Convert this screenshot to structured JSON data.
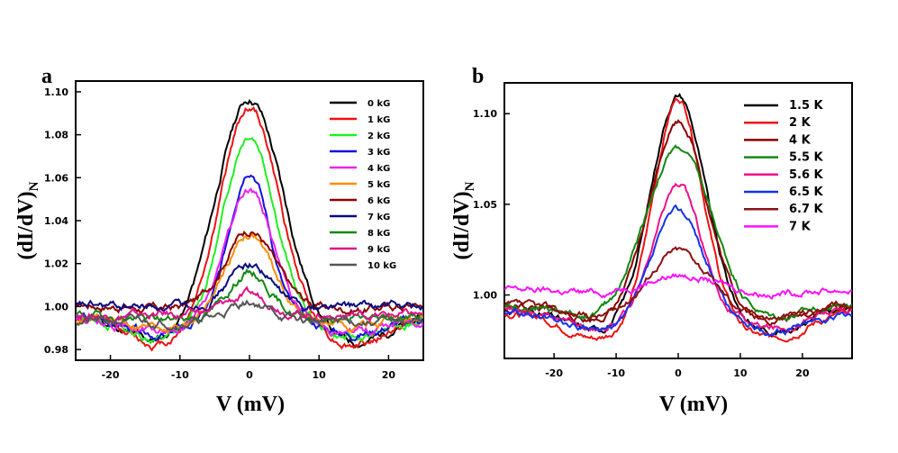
{
  "chart_data": [
    {
      "panel": "a",
      "type": "line",
      "xlabel": "V (mV)",
      "ylabel": "(dI/dV)N",
      "ylabel_main": "(dI/dV)",
      "ylabel_sub": "N",
      "xlim": [
        -25,
        25
      ],
      "ylim": [
        0.975,
        1.105
      ],
      "xticks": [
        -20,
        -10,
        0,
        10,
        20
      ],
      "yticks": [
        0.98,
        1.0,
        1.02,
        1.04,
        1.06,
        1.08,
        1.1
      ],
      "ytick_labels": [
        "0.98",
        "1.00",
        "1.02",
        "1.04",
        "1.06",
        "1.08",
        "1.10"
      ],
      "legend_position": "top-right",
      "series": [
        {
          "name": "0 kG",
          "color": "#000000",
          "peak": 1.097,
          "width": 4.6,
          "base": 0.995,
          "dip": 0.012,
          "dipw": 4.5,
          "seed": 11
        },
        {
          "name": "1 kG",
          "color": "#ee1111",
          "peak": 1.093,
          "width": 4.1,
          "base": 0.995,
          "dip": 0.013,
          "dipw": 4.5,
          "seed": 12
        },
        {
          "name": "2 kG",
          "color": "#22ee22",
          "peak": 1.081,
          "width": 3.6,
          "base": 0.995,
          "dip": 0.01,
          "dipw": 4.5,
          "seed": 13
        },
        {
          "name": "3 kG",
          "color": "#1111dd",
          "peak": 1.065,
          "width": 2.8,
          "base": 0.995,
          "dip": 0.008,
          "dipw": 4.5,
          "seed": 14
        },
        {
          "name": "4 kG",
          "color": "#ee22ee",
          "peak": 1.055,
          "width": 3.3,
          "base": 0.995,
          "dip": 0.007,
          "dipw": 4.5,
          "seed": 15
        },
        {
          "name": "5 kG",
          "color": "#ff8c00",
          "peak": 1.034,
          "width": 3.4,
          "base": 0.994,
          "dip": 0.003,
          "dipw": 4.5,
          "seed": 16
        },
        {
          "name": "6 kG",
          "color": "#8b0000",
          "peak": 1.036,
          "width": 3.5,
          "base": 1.001,
          "dip": 0.002,
          "dipw": 4.5,
          "seed": 17
        },
        {
          "name": "7 kG",
          "color": "#0a0a80",
          "peak": 1.02,
          "width": 3.0,
          "base": 1.0,
          "dip": 0.0,
          "dipw": 4.5,
          "seed": 18
        },
        {
          "name": "8 kG",
          "color": "#118811",
          "peak": 1.016,
          "width": 2.8,
          "base": 0.996,
          "dip": 0.002,
          "dipw": 4.5,
          "seed": 19
        },
        {
          "name": "9 kG",
          "color": "#dd1188",
          "peak": 1.005,
          "width": 3.5,
          "base": 0.996,
          "dip": 0.0,
          "dipw": 4.5,
          "seed": 20
        },
        {
          "name": "10 kG",
          "color": "#555555",
          "peak": 1.002,
          "width": 3.0,
          "base": 0.993,
          "dip": 0.0,
          "dipw": 4.5,
          "seed": 21
        }
      ]
    },
    {
      "panel": "b",
      "type": "line",
      "xlabel": "V (mV)",
      "ylabel": "(dI/dV)N",
      "ylabel_main": "(dI/dV)",
      "ylabel_sub": "N",
      "xlim": [
        -28,
        28
      ],
      "ylim": [
        0.965,
        1.117
      ],
      "xticks": [
        -20,
        -10,
        0,
        10,
        20
      ],
      "yticks": [
        1.0,
        1.05,
        1.1
      ],
      "ytick_labels": [
        "1.00",
        "1.05",
        "1.10"
      ],
      "legend_position": "top-right",
      "series": [
        {
          "name": "1.5 K",
          "color": "#000000",
          "peak": 1.111,
          "width": 4.2,
          "base": 0.992,
          "dip": 0.012,
          "dipw": 5,
          "seed": 31
        },
        {
          "name": "2 K",
          "color": "#ee1111",
          "peak": 1.109,
          "width": 3.8,
          "base": 0.99,
          "dip": 0.014,
          "dipw": 5,
          "seed": 32
        },
        {
          "name": "4 K",
          "color": "#8b0000",
          "peak": 1.097,
          "width": 4.4,
          "base": 0.994,
          "dip": 0.008,
          "dipw": 5,
          "seed": 33
        },
        {
          "name": "5.5 K",
          "color": "#118811",
          "peak": 1.081,
          "width": 5.2,
          "base": 0.995,
          "dip": 0.008,
          "dipw": 5,
          "seed": 34
        },
        {
          "name": "5.6 K",
          "color": "#ee1188",
          "peak": 1.061,
          "width": 3.6,
          "base": 0.992,
          "dip": 0.01,
          "dipw": 5,
          "seed": 35
        },
        {
          "name": "6.5 K",
          "color": "#1133ee",
          "peak": 1.047,
          "width": 4.0,
          "base": 0.99,
          "dip": 0.01,
          "dipw": 5,
          "seed": 36
        },
        {
          "name": "6.7 K",
          "color": "#8b1111",
          "peak": 1.025,
          "width": 4.6,
          "base": 0.994,
          "dip": 0.006,
          "dipw": 5,
          "seed": 37
        },
        {
          "name": "7 K",
          "color": "#ff11ff",
          "peak": 1.011,
          "width": 5.5,
          "base": 1.003,
          "dip": 0.002,
          "dipw": 5,
          "seed": 38
        }
      ]
    }
  ]
}
